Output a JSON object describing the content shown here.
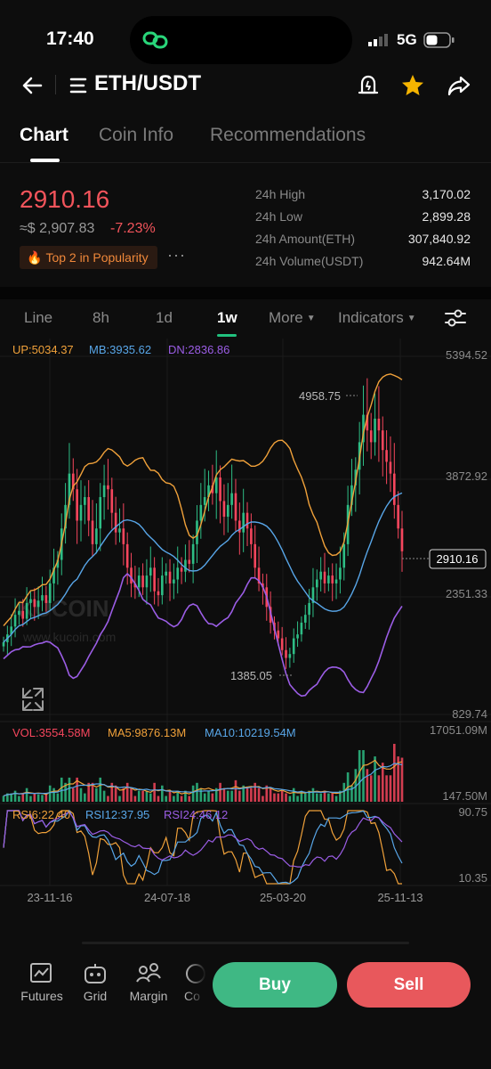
{
  "status_bar": {
    "time": "17:40",
    "network": "5G"
  },
  "header": {
    "pair": "ETH/USDT",
    "icons": [
      "back-arrow-icon",
      "menu-icon",
      "alert-icon",
      "star-icon",
      "share-icon"
    ],
    "star_color": "#f5b400"
  },
  "tabs": [
    {
      "label": "Chart",
      "active": true
    },
    {
      "label": "Coin Info",
      "active": false
    },
    {
      "label": "Recommendations",
      "active": false
    }
  ],
  "ticker": {
    "last_price": "2910.16",
    "usd_price": "≈$ 2,907.83",
    "change_pct": "-7.23%",
    "popularity_badge": "Top 2 in Popularity",
    "more": "···",
    "stats": [
      {
        "label": "24h High",
        "value": "3,170.02"
      },
      {
        "label": "24h Low",
        "value": "2,899.28"
      },
      {
        "label": "24h Amount(ETH)",
        "value": "307,840.92"
      },
      {
        "label": "24h Volume(USDT)",
        "value": "942.64M"
      }
    ]
  },
  "toolbar": {
    "timeframes": [
      {
        "label": "Line",
        "active": false
      },
      {
        "label": "8h",
        "active": false
      },
      {
        "label": "1d",
        "active": false
      },
      {
        "label": "1w",
        "active": true
      }
    ],
    "more_label": "More",
    "indicators_label": "Indicators"
  },
  "chart_data": {
    "type": "candlestick",
    "interval": "1w",
    "indicator_legend": {
      "up": "UP:5034.37",
      "mb": "MB:3935.62",
      "dn": "DN:2836.86"
    },
    "price_axis_labels": [
      "5394.52",
      "3872.92",
      "2351.33",
      "829.74"
    ],
    "current_price_label": "2910.16",
    "high_marker": "4958.75",
    "low_marker": "1385.05",
    "x_axis_labels": [
      "23-11-16",
      "24-07-18",
      "25-03-20",
      "25-11-13"
    ],
    "watermark": "KUCOIN",
    "watermark_url": "www.kucoin.com",
    "colors": {
      "up": "#2ebd85",
      "down": "#f6465d",
      "boll_up": "#f0a13a",
      "boll_mb": "#58a6e8",
      "boll_dn": "#9b5de5"
    },
    "closes": [
      1750,
      1850,
      1950,
      2100,
      2150,
      2050,
      2250,
      2300,
      2200,
      2280,
      2350,
      2250,
      2500,
      2700,
      2800,
      3200,
      3500,
      3900,
      3700,
      3300,
      3500,
      3600,
      3300,
      3000,
      3200,
      3600,
      3750,
      3700,
      3400,
      3150,
      3200,
      3000,
      2700,
      2500,
      2450,
      2600,
      2450,
      2600,
      2700,
      2400,
      2350,
      2600,
      2650,
      2500,
      2550,
      2700,
      2650,
      2800,
      2750,
      3000,
      3300,
      3500,
      3600,
      3750,
      3650,
      3850,
      3550,
      3350,
      3500,
      3650,
      3300,
      3150,
      3400,
      3200,
      3000,
      2700,
      2500,
      2450,
      2200,
      2000,
      1900,
      1800,
      1650,
      1550,
      1600,
      1800,
      1850,
      2000,
      2100,
      2250,
      2450,
      2550,
      2650,
      2500,
      2600,
      2500,
      2550,
      2700,
      3000,
      3500,
      3750,
      3950,
      4300,
      4650,
      4450,
      4300,
      4600,
      4450,
      4200,
      4050,
      3900,
      3500,
      3200,
      2910
    ],
    "volume_legend": {
      "vol": "VOL:3554.58M",
      "ma5": "MA5:9876.13M",
      "ma10": "MA10:10219.54M"
    },
    "volume_axis_labels": [
      "17051.09M",
      "147.50M"
    ],
    "rsi_legend": {
      "rsi6": "RSI6:22.40",
      "rsi12": "RSI12:37.95",
      "rsi24": "RSI24:46.12"
    },
    "rsi_axis_labels": [
      "90.75",
      "10.35"
    ]
  },
  "bottom_nav": {
    "items": [
      {
        "label": "Futures",
        "icon": "futures-icon"
      },
      {
        "label": "Grid",
        "icon": "grid-bot-icon"
      },
      {
        "label": "Margin",
        "icon": "margin-icon"
      },
      {
        "label": "Co",
        "icon": "copy-icon"
      }
    ],
    "buy_label": "Buy",
    "sell_label": "Sell",
    "buy_color": "#3fb884",
    "sell_color": "#e8585c"
  }
}
